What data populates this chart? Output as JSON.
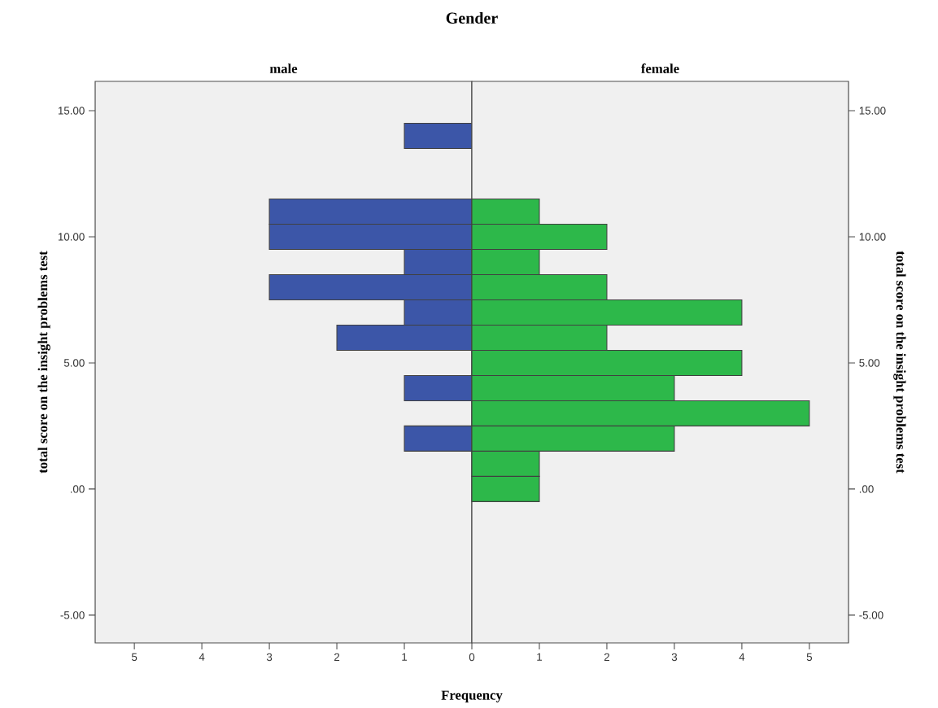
{
  "chart_data": [
    {
      "type": "histogram",
      "orientation": "horizontal",
      "title": "male",
      "annotations": [
        "Gender"
      ],
      "xlabel": "Frequency",
      "ylabel": "total score on the insight problems test",
      "color": "#3c56a8",
      "bins": [
        -0.5,
        0.5,
        1.5,
        2.5,
        3.5,
        4.5,
        5.5,
        6.5,
        7.5,
        8.5,
        9.5,
        10.5,
        11.5,
        12.5,
        13.5,
        14.5
      ],
      "values": [
        0,
        0,
        1,
        0,
        1,
        0,
        2,
        1,
        3,
        1,
        3,
        3,
        0,
        0,
        1
      ],
      "xlim": [
        5.58,
        0
      ],
      "xticks": [
        5,
        4,
        3,
        2,
        1,
        0
      ],
      "ylim": [
        -6.1,
        16.16
      ],
      "yticks": [
        {
          "value": -5,
          "label": "-5.00"
        },
        {
          "value": 0,
          "label": ".00"
        },
        {
          "value": 5,
          "label": "5.00"
        },
        {
          "value": 10,
          "label": "10.00"
        },
        {
          "value": 15,
          "label": "15.00"
        }
      ]
    },
    {
      "type": "histogram",
      "orientation": "horizontal",
      "title": "female",
      "ylabel": "total score on the insight problems test",
      "color": "#2db84a",
      "bins": [
        -0.5,
        0.5,
        1.5,
        2.5,
        3.5,
        4.5,
        5.5,
        6.5,
        7.5,
        8.5,
        9.5,
        10.5,
        11.5,
        12.5,
        13.5,
        14.5
      ],
      "values": [
        1,
        1,
        3,
        5,
        3,
        4,
        2,
        4,
        2,
        1,
        2,
        1,
        0,
        0,
        0
      ],
      "xlim": [
        0,
        5.58
      ],
      "xticks": [
        1,
        2,
        3,
        4,
        5
      ],
      "ylim": [
        -6.1,
        16.16
      ],
      "yticks": [
        {
          "value": -5,
          "label": "-5.00"
        },
        {
          "value": 0,
          "label": ".00"
        },
        {
          "value": 5,
          "label": "5.00"
        },
        {
          "value": 10,
          "label": "10.00"
        },
        {
          "value": 15,
          "label": "15.00"
        }
      ]
    }
  ]
}
